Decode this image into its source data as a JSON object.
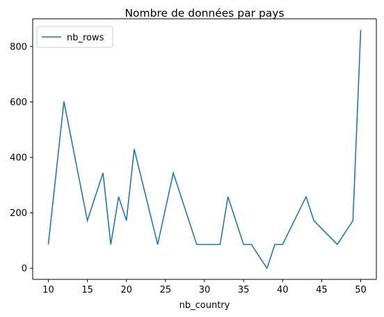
{
  "chart_data": {
    "type": "line",
    "title": "Nombre de données par pays",
    "xlabel": "nb_country",
    "ylabel": "",
    "xlim": [
      8.0,
      52.0
    ],
    "ylim": [
      -40,
      900
    ],
    "xticks": [
      10,
      15,
      20,
      25,
      30,
      35,
      40,
      45,
      50
    ],
    "yticks": [
      0,
      200,
      400,
      600,
      800
    ],
    "grid": false,
    "legend_position": "upper-left",
    "series": [
      {
        "name": "nb_rows",
        "color": "#1f77b4",
        "x": [
          10,
          12,
          15,
          17,
          18,
          19,
          20,
          21,
          24,
          26,
          29,
          30,
          32,
          33,
          35,
          36,
          38,
          39,
          40,
          43,
          44,
          47,
          49,
          50
        ],
        "y": [
          86,
          602,
          172,
          344,
          86,
          258,
          172,
          430,
          86,
          344,
          86,
          86,
          86,
          258,
          86,
          86,
          0,
          86,
          86,
          258,
          172,
          86,
          172,
          860
        ]
      }
    ]
  }
}
